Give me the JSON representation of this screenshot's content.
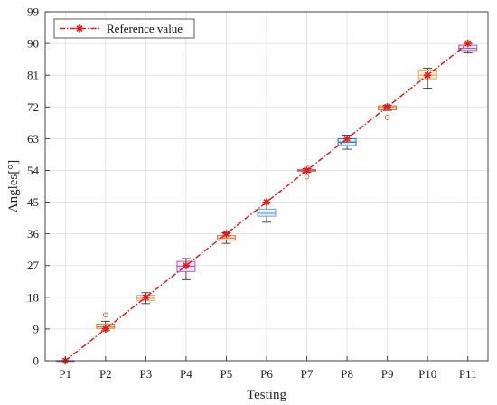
{
  "chart_data": {
    "type": "box",
    "title": "",
    "xlabel": "Testing",
    "ylabel": "Angles[°]",
    "categories": [
      "P1",
      "P2",
      "P3",
      "P4",
      "P5",
      "P6",
      "P7",
      "P8",
      "P9",
      "P10",
      "P11"
    ],
    "yticks": [
      0,
      9,
      18,
      27,
      36,
      45,
      54,
      63,
      72,
      81,
      90,
      99
    ],
    "ylim": [
      0,
      99
    ],
    "grid": true,
    "legend": {
      "position": "top-left",
      "entries": [
        "Reference value"
      ]
    },
    "reference_series": {
      "name": "Reference value",
      "color": "#e41a1c",
      "style": "dash-dot",
      "marker": "asterisk",
      "values": [
        0,
        9,
        18,
        27,
        36,
        45,
        54,
        63,
        72,
        81,
        90
      ]
    },
    "boxes": [
      {
        "category": "P1",
        "min": 0,
        "q1": 0,
        "median": 0,
        "q3": 0,
        "max": 0,
        "outliers": [],
        "color": "#7e57c2"
      },
      {
        "category": "P2",
        "min": 8.5,
        "q1": 9.2,
        "median": 9.6,
        "q3": 10.4,
        "max": 11.2,
        "outliers": [
          13
        ],
        "color": "#d4892a"
      },
      {
        "category": "P3",
        "min": 16.2,
        "q1": 17.1,
        "median": 17.7,
        "q3": 18.6,
        "max": 19.3,
        "outliers": [],
        "color": "#e8a87c"
      },
      {
        "category": "P4",
        "min": 23.0,
        "q1": 25.3,
        "median": 26.8,
        "q3": 28.2,
        "max": 29.0,
        "outliers": [],
        "color": "#b05fc6"
      },
      {
        "category": "P5",
        "min": 33.3,
        "q1": 34.2,
        "median": 34.8,
        "q3": 35.5,
        "max": 36.3,
        "outliers": [],
        "color": "#e07b39"
      },
      {
        "category": "P6",
        "min": 39.3,
        "q1": 41.0,
        "median": 41.8,
        "q3": 43.0,
        "max": 44.8,
        "outliers": [],
        "color": "#6ba3d6"
      },
      {
        "category": "P7",
        "min": 53.5,
        "q1": 53.8,
        "median": 54.0,
        "q3": 54.2,
        "max": 54.5,
        "outliers": [
          52.2,
          55.0
        ],
        "color": "#d94f4f"
      },
      {
        "category": "P8",
        "min": 60.0,
        "q1": 61.0,
        "median": 62.0,
        "q3": 63.0,
        "max": 64.0,
        "outliers": [],
        "color": "#1f77b4"
      },
      {
        "category": "P9",
        "min": 71.0,
        "q1": 71.2,
        "median": 71.8,
        "q3": 72.3,
        "max": 72.5,
        "outliers": [
          69.0
        ],
        "color": "#d9622b"
      },
      {
        "category": "P10",
        "min": 77.3,
        "q1": 80.0,
        "median": 81.0,
        "q3": 82.5,
        "max": 83.0,
        "outliers": [],
        "color": "#f0a04b"
      },
      {
        "category": "P11",
        "min": 87.3,
        "q1": 88.0,
        "median": 88.6,
        "q3": 89.5,
        "max": 90.0,
        "outliers": [],
        "color": "#9467bd"
      }
    ]
  }
}
